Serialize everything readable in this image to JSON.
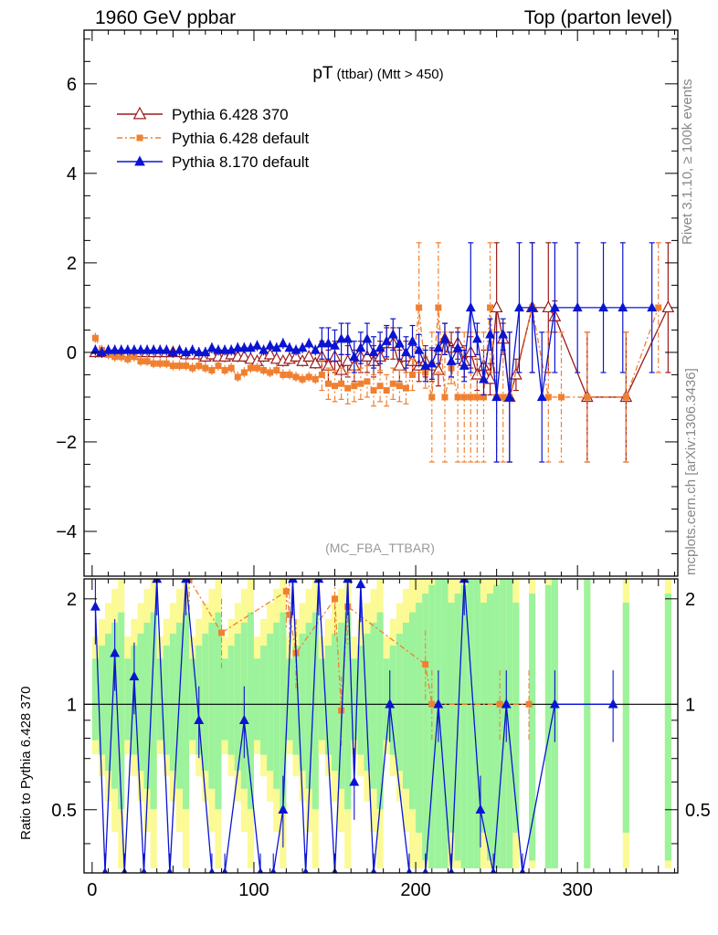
{
  "header": {
    "left": "1960 GeV ppbar",
    "right": "Top (parton level)"
  },
  "side_labels": {
    "rivet": "Rivet 3.1.10, ≥ 100k events",
    "mcplots": "mcplots.cern.ch [arXiv:1306.3436]"
  },
  "plot_title": {
    "main": "pT",
    "sub": "(ttbar) (Mtt > 450)"
  },
  "analysis_tag": "(MC_FBA_TTBAR)",
  "ratio_ylabel": "Ratio to Pythia 6.428 370",
  "colors": {
    "p6_370": "#9b1b1b",
    "p6_default": "#f08030",
    "p8_default": "#0a14d2",
    "band_green": "#9cf39c",
    "band_yellow": "#fbfa94"
  },
  "chart_data": [
    {
      "type": "scatter",
      "title": "pT (ttbar) (Mtt > 450)",
      "xlim": [
        -5,
        362
      ],
      "ylim": [
        -5,
        7.2
      ],
      "xticks": [
        0,
        100,
        200,
        300
      ],
      "yticks": [
        -4,
        -2,
        0,
        2,
        4,
        6
      ],
      "legend_position": "top-left",
      "series": [
        {
          "name": "Pythia 6.428 370",
          "marker": "open-triangle",
          "style": "solid",
          "points": [
            [
              2,
              0
            ],
            [
              6,
              0
            ],
            [
              10,
              0
            ],
            [
              14,
              0
            ],
            [
              18,
              0
            ],
            [
              22,
              0
            ],
            [
              26,
              0
            ],
            [
              30,
              0
            ],
            [
              34,
              0
            ],
            [
              38,
              0
            ],
            [
              42,
              0
            ],
            [
              46,
              0
            ],
            [
              50,
              0
            ],
            [
              54,
              0
            ],
            [
              58,
              -0.05
            ],
            [
              62,
              -0.05
            ],
            [
              66,
              -0.05
            ],
            [
              70,
              -0.1
            ],
            [
              74,
              -0.05
            ],
            [
              78,
              -0.1
            ],
            [
              82,
              -0.1
            ],
            [
              86,
              -0.05
            ],
            [
              90,
              -0.1
            ],
            [
              94,
              -0.1
            ],
            [
              98,
              -0.15
            ],
            [
              102,
              -0.2
            ],
            [
              106,
              -0.1
            ],
            [
              110,
              -0.05
            ],
            [
              114,
              -0.15
            ],
            [
              118,
              -0.2
            ],
            [
              122,
              -0.15
            ],
            [
              126,
              -0.1
            ],
            [
              130,
              -0.2
            ],
            [
              134,
              -0.1
            ],
            [
              138,
              -0.25
            ],
            [
              142,
              -0.1
            ],
            [
              146,
              -0.3
            ],
            [
              150,
              -0.1
            ],
            [
              154,
              -0.4
            ],
            [
              158,
              -0.2
            ],
            [
              162,
              -0.3
            ],
            [
              166,
              -0.1
            ],
            [
              170,
              -0.1
            ],
            [
              174,
              -0.2
            ],
            [
              178,
              -0.1
            ],
            [
              182,
              0.2
            ],
            [
              186,
              0.2
            ],
            [
              190,
              -0.3
            ],
            [
              194,
              -0.1
            ],
            [
              198,
              -0.2
            ],
            [
              202,
              -0.3
            ],
            [
              206,
              -0.2
            ],
            [
              210,
              -0.3
            ],
            [
              214,
              -0.4
            ],
            [
              218,
              0.3
            ],
            [
              222,
              0.1
            ],
            [
              226,
              0.2
            ],
            [
              230,
              -0.2
            ],
            [
              234,
              0
            ],
            [
              238,
              -0.5
            ],
            [
              242,
              -0.3
            ],
            [
              246,
              -0.6
            ],
            [
              250,
              1
            ],
            [
              254,
              0.3
            ],
            [
              258,
              -1
            ],
            [
              262,
              -0.5
            ],
            [
              272,
              1
            ],
            [
              282,
              1
            ],
            [
              286,
              0.8
            ],
            [
              306,
              -1
            ],
            [
              330,
              -1
            ],
            [
              356,
              1
            ]
          ]
        },
        {
          "name": "Pythia 6.428 default",
          "marker": "filled-square",
          "style": "dash-dot",
          "points": [
            [
              2,
              0.32
            ],
            [
              6,
              0.05
            ],
            [
              10,
              -0.05
            ],
            [
              14,
              -0.1
            ],
            [
              18,
              -0.1
            ],
            [
              22,
              -0.15
            ],
            [
              26,
              -0.1
            ],
            [
              30,
              -0.2
            ],
            [
              34,
              -0.2
            ],
            [
              38,
              -0.25
            ],
            [
              42,
              -0.25
            ],
            [
              46,
              -0.25
            ],
            [
              50,
              -0.3
            ],
            [
              54,
              -0.3
            ],
            [
              58,
              -0.3
            ],
            [
              62,
              -0.35
            ],
            [
              66,
              -0.3
            ],
            [
              70,
              -0.35
            ],
            [
              74,
              -0.4
            ],
            [
              78,
              -0.3
            ],
            [
              82,
              -0.4
            ],
            [
              86,
              -0.35
            ],
            [
              90,
              -0.55
            ],
            [
              94,
              -0.45
            ],
            [
              98,
              -0.35
            ],
            [
              102,
              -0.35
            ],
            [
              106,
              -0.4
            ],
            [
              110,
              -0.45
            ],
            [
              114,
              -0.4
            ],
            [
              118,
              -0.5
            ],
            [
              122,
              -0.5
            ],
            [
              126,
              -0.55
            ],
            [
              130,
              -0.6
            ],
            [
              134,
              -0.55
            ],
            [
              138,
              -0.6
            ],
            [
              142,
              -0.5
            ],
            [
              146,
              -0.7
            ],
            [
              150,
              -0.75
            ],
            [
              154,
              -0.7
            ],
            [
              158,
              -0.8
            ],
            [
              162,
              -0.75
            ],
            [
              166,
              -0.7
            ],
            [
              170,
              -0.65
            ],
            [
              174,
              -0.85
            ],
            [
              178,
              -0.75
            ],
            [
              182,
              -0.85
            ],
            [
              186,
              -0.7
            ],
            [
              190,
              -0.75
            ],
            [
              194,
              -0.8
            ],
            [
              198,
              -0.5
            ],
            [
              202,
              1
            ],
            [
              206,
              -0.45
            ],
            [
              210,
              -1
            ],
            [
              214,
              1
            ],
            [
              218,
              -1
            ],
            [
              222,
              -0.35
            ],
            [
              226,
              -1
            ],
            [
              230,
              -1
            ],
            [
              234,
              -1
            ],
            [
              238,
              -1
            ],
            [
              242,
              -1
            ],
            [
              246,
              1
            ],
            [
              250,
              -1
            ],
            [
              254,
              -1
            ],
            [
              258,
              -1
            ],
            [
              272,
              1
            ],
            [
              282,
              -1
            ],
            [
              290,
              -1
            ],
            [
              306,
              -1
            ],
            [
              330,
              -1
            ],
            [
              350,
              1
            ]
          ]
        },
        {
          "name": "Pythia 8.170 default",
          "marker": "filled-triangle",
          "style": "solid",
          "points": [
            [
              2,
              0.05
            ],
            [
              6,
              0
            ],
            [
              10,
              0.05
            ],
            [
              14,
              0.05
            ],
            [
              18,
              0.05
            ],
            [
              22,
              0.05
            ],
            [
              26,
              0.05
            ],
            [
              30,
              0.05
            ],
            [
              34,
              0.05
            ],
            [
              38,
              0.05
            ],
            [
              42,
              0.05
            ],
            [
              46,
              0.05
            ],
            [
              50,
              0
            ],
            [
              54,
              0.05
            ],
            [
              58,
              0
            ],
            [
              62,
              0.05
            ],
            [
              66,
              0
            ],
            [
              70,
              0
            ],
            [
              74,
              0.1
            ],
            [
              78,
              0.05
            ],
            [
              82,
              0.05
            ],
            [
              86,
              0.05
            ],
            [
              90,
              0.1
            ],
            [
              94,
              0.1
            ],
            [
              98,
              0.1
            ],
            [
              102,
              0.15
            ],
            [
              106,
              0.05
            ],
            [
              110,
              0.15
            ],
            [
              114,
              0.1
            ],
            [
              118,
              0.2
            ],
            [
              122,
              0.1
            ],
            [
              126,
              0.05
            ],
            [
              130,
              0.1
            ],
            [
              134,
              0.2
            ],
            [
              138,
              0.05
            ],
            [
              142,
              0.2
            ],
            [
              146,
              0.2
            ],
            [
              150,
              0.15
            ],
            [
              154,
              0.3
            ],
            [
              158,
              0.3
            ],
            [
              162,
              -0.1
            ],
            [
              166,
              0.1
            ],
            [
              170,
              0.3
            ],
            [
              174,
              0
            ],
            [
              178,
              0.1
            ],
            [
              182,
              0.25
            ],
            [
              186,
              0.4
            ],
            [
              190,
              0.2
            ],
            [
              194,
              0
            ],
            [
              198,
              0.25
            ],
            [
              202,
              0.05
            ],
            [
              206,
              -0.3
            ],
            [
              210,
              -0.25
            ],
            [
              214,
              0.1
            ],
            [
              218,
              0.3
            ],
            [
              222,
              -0.2
            ],
            [
              226,
              0.1
            ],
            [
              230,
              -0.3
            ],
            [
              234,
              1
            ],
            [
              238,
              0.3
            ],
            [
              242,
              -0.6
            ],
            [
              246,
              0.4
            ],
            [
              250,
              -1
            ],
            [
              254,
              0.4
            ],
            [
              258,
              -1
            ],
            [
              264,
              1
            ],
            [
              272,
              1
            ],
            [
              278,
              -1
            ],
            [
              286,
              1
            ],
            [
              300,
              1
            ],
            [
              316,
              1
            ],
            [
              328,
              1
            ],
            [
              346,
              1
            ]
          ]
        }
      ]
    },
    {
      "type": "scatter",
      "ylabel": "Ratio to Pythia 6.428 370",
      "xlim": [
        -5,
        362
      ],
      "ylim": [
        0.33,
        2.28
      ],
      "yticks": [
        0.5,
        1,
        2
      ],
      "reference_line": 1,
      "series": [
        {
          "name": "Pythia 6.428 default",
          "points": [
            [
              60,
              2.3
            ],
            [
              80,
              1.6
            ],
            [
              120,
              2.1
            ],
            [
              122,
              1.8
            ],
            [
              126,
              1.4
            ],
            [
              150,
              2.0
            ],
            [
              154,
              0.96
            ],
            [
              158,
              1.9
            ],
            [
              206,
              1.3
            ],
            [
              210,
              1.0
            ],
            [
              252,
              1.0
            ],
            [
              270,
              1.0
            ]
          ]
        },
        {
          "name": "Pythia 8.170 default",
          "points": [
            [
              2,
              1.9
            ],
            [
              8,
              0.3
            ],
            [
              14,
              1.4
            ],
            [
              20,
              0.3
            ],
            [
              26,
              1.2
            ],
            [
              32,
              0.3
            ],
            [
              40,
              2.3
            ],
            [
              48,
              0.3
            ],
            [
              58,
              2.3
            ],
            [
              66,
              0.9
            ],
            [
              74,
              0.3
            ],
            [
              82,
              0.3
            ],
            [
              94,
              0.9
            ],
            [
              104,
              0.3
            ],
            [
              112,
              0.3
            ],
            [
              118,
              0.5
            ],
            [
              124,
              2.3
            ],
            [
              132,
              0.3
            ],
            [
              140,
              2.3
            ],
            [
              150,
              0.3
            ],
            [
              158,
              2.3
            ],
            [
              162,
              0.6
            ],
            [
              166,
              2.2
            ],
            [
              174,
              0.3
            ],
            [
              184,
              1.0
            ],
            [
              196,
              0.3
            ],
            [
              206,
              0.3
            ],
            [
              214,
              1.0
            ],
            [
              222,
              0.3
            ],
            [
              230,
              2.3
            ],
            [
              240,
              0.5
            ],
            [
              248,
              0.3
            ],
            [
              256,
              1.0
            ],
            [
              266,
              0.3
            ],
            [
              286,
              1.0
            ],
            [
              322,
              1.0
            ]
          ]
        }
      ]
    }
  ]
}
